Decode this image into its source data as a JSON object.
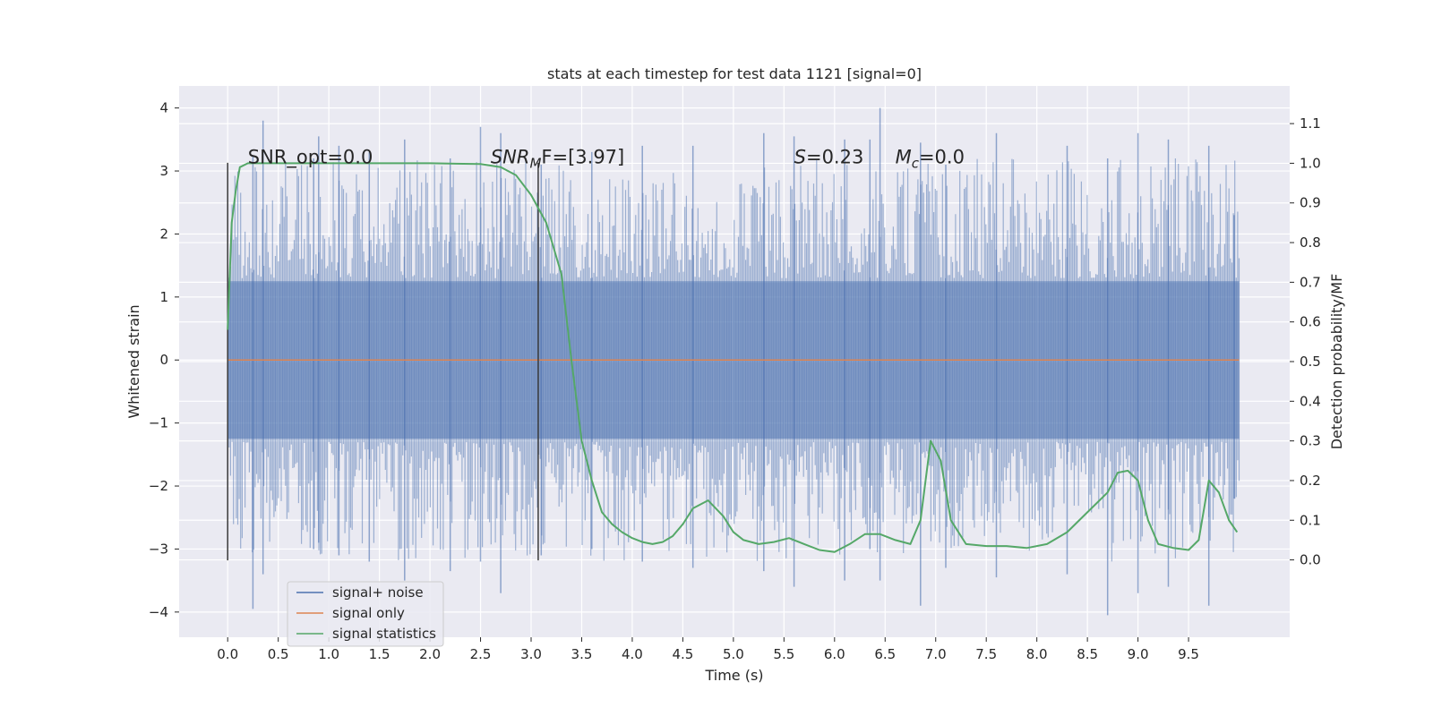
{
  "chart_data": {
    "type": "line",
    "title": "stats at each timestep for test data 1121 [signal=0]",
    "xlabel": "Time (s)",
    "ylabel": "Whitened strain",
    "y2label": "Detection probability/MF",
    "xlim": [
      -0.48,
      10.5
    ],
    "ylim": [
      -4.4,
      4.35
    ],
    "y2lim": [
      -0.195,
      1.195
    ],
    "xticks": [
      "0.0",
      "0.5",
      "1.0",
      "1.5",
      "2.0",
      "2.5",
      "3.0",
      "3.5",
      "4.0",
      "4.5",
      "5.0",
      "5.5",
      "6.0",
      "6.5",
      "7.0",
      "7.5",
      "8.0",
      "8.5",
      "9.0",
      "9.5"
    ],
    "yticks": [
      "4",
      "3",
      "2",
      "1",
      "0",
      "−1",
      "−2",
      "−3",
      "−4"
    ],
    "y2ticks": [
      "1.1",
      "1.0",
      "0.9",
      "0.8",
      "0.7",
      "0.6",
      "0.5",
      "0.4",
      "0.3",
      "0.2",
      "0.1",
      "0.0"
    ],
    "grid": true,
    "legend_position": "lower-left",
    "noise_span": [
      0.0,
      10.0
    ],
    "noise_band": [
      -1.25,
      1.25
    ],
    "series": [
      {
        "name": "signal+ noise",
        "color": "#4c72b0",
        "axis": "left",
        "x": [
          0.25,
          0.35,
          0.85,
          0.9,
          1.1,
          1.4,
          1.75,
          2.2,
          2.5,
          2.7,
          3.1,
          3.6,
          4.1,
          4.6,
          5.3,
          5.6,
          6.1,
          6.35,
          6.45,
          6.85,
          7.1,
          7.6,
          8.3,
          8.7,
          9.0,
          9.3,
          9.7,
          9.95
        ],
        "high": [
          3.25,
          3.8,
          3.2,
          3.55,
          3.4,
          3.3,
          3.5,
          3.2,
          3.7,
          3.6,
          3.1,
          3.3,
          3.4,
          3.4,
          3.6,
          3.55,
          3.5,
          3.5,
          4.0,
          3.45,
          3.1,
          3.6,
          3.4,
          3.2,
          3.6,
          3.5,
          3.4,
          2.3
        ],
        "low": [
          -3.95,
          -3.4,
          -3.0,
          -2.9,
          -3.1,
          -3.2,
          -3.5,
          -3.35,
          -3.2,
          -3.7,
          -3.1,
          -3.0,
          -3.2,
          -3.3,
          -3.35,
          -3.6,
          -3.5,
          -3.0,
          -3.5,
          -3.9,
          -3.3,
          -3.45,
          -3.4,
          -4.05,
          -3.7,
          -3.6,
          -3.9,
          -2.2
        ]
      },
      {
        "name": "signal only",
        "color": "#dd8452",
        "axis": "left",
        "x": [
          0.0,
          10.0
        ],
        "y": [
          0.0,
          0.0
        ]
      },
      {
        "name": "signal statistics",
        "color": "#55a868",
        "axis": "right",
        "x": [
          0.0,
          0.04,
          0.08,
          0.12,
          0.2,
          0.3,
          0.5,
          1.0,
          1.5,
          2.0,
          2.5,
          2.7,
          2.85,
          3.0,
          3.15,
          3.3,
          3.4,
          3.5,
          3.6,
          3.7,
          3.8,
          3.9,
          4.0,
          4.1,
          4.2,
          4.3,
          4.4,
          4.5,
          4.6,
          4.75,
          4.9,
          5.0,
          5.1,
          5.25,
          5.4,
          5.55,
          5.7,
          5.85,
          6.0,
          6.15,
          6.3,
          6.45,
          6.6,
          6.75,
          6.85,
          6.95,
          7.05,
          7.15,
          7.3,
          7.5,
          7.7,
          7.9,
          8.1,
          8.3,
          8.5,
          8.7,
          8.8,
          8.9,
          9.0,
          9.1,
          9.2,
          9.35,
          9.5,
          9.6,
          9.7,
          9.8,
          9.9,
          9.98
        ],
        "y": [
          0.58,
          0.85,
          0.93,
          0.99,
          1.0,
          1.0,
          1.0,
          1.0,
          1.0,
          1.0,
          0.998,
          0.99,
          0.97,
          0.92,
          0.85,
          0.72,
          0.5,
          0.3,
          0.2,
          0.12,
          0.09,
          0.07,
          0.055,
          0.045,
          0.04,
          0.045,
          0.06,
          0.09,
          0.13,
          0.15,
          0.11,
          0.07,
          0.05,
          0.04,
          0.045,
          0.055,
          0.04,
          0.025,
          0.02,
          0.04,
          0.065,
          0.065,
          0.05,
          0.04,
          0.1,
          0.3,
          0.25,
          0.1,
          0.04,
          0.035,
          0.035,
          0.03,
          0.04,
          0.07,
          0.12,
          0.17,
          0.22,
          0.225,
          0.2,
          0.1,
          0.04,
          0.03,
          0.025,
          0.05,
          0.2,
          0.17,
          0.1,
          0.07
        ]
      }
    ],
    "vlines": [
      0.0,
      3.07
    ],
    "annotations": [
      {
        "prefix": "SNR_opt=0.0",
        "main": "",
        "sub": "",
        "suffix": "",
        "x": 0.2,
        "y": 1.0
      },
      {
        "prefix": "",
        "main": "SNR",
        "sub": "M",
        "suffix": "F=[3.97]",
        "x": 2.6,
        "y": 1.0
      },
      {
        "prefix": "",
        "main": "S",
        "sub": "",
        "suffix": "=0.23",
        "x": 5.6,
        "y": 1.0
      },
      {
        "prefix": "",
        "main": "M",
        "sub": "c",
        "suffix": "=0.0",
        "x": 6.6,
        "y": 1.0
      }
    ]
  }
}
